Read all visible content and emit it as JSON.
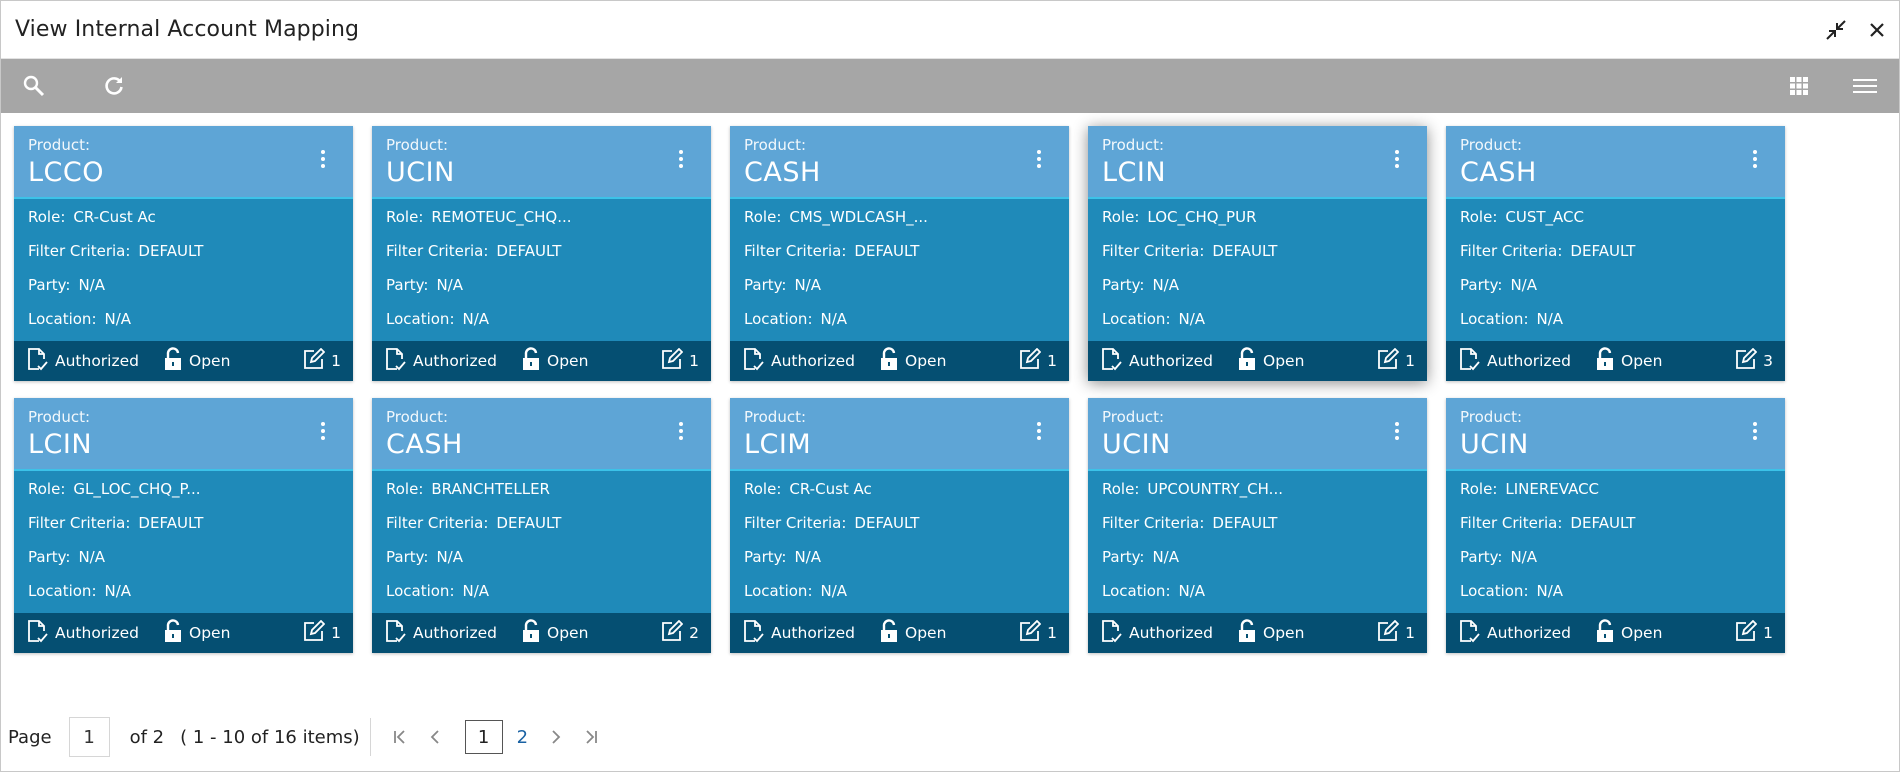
{
  "window": {
    "title": "View Internal Account Mapping"
  },
  "toolbar": {
    "search_icon": "search-icon",
    "refresh_icon": "refresh-icon",
    "grid_icon": "grid-view-icon",
    "list_icon": "list-view-icon"
  },
  "labels": {
    "product": "Product:",
    "role": "Role:",
    "filter": "Filter Criteria:",
    "party": "Party:",
    "location": "Location:"
  },
  "cards": [
    {
      "product": "LCCO",
      "role": "CR-Cust Ac",
      "filter": "DEFAULT",
      "party": "N/A",
      "location": "N/A",
      "auth": "Authorized",
      "status": "Open",
      "count": "1"
    },
    {
      "product": "UCIN",
      "role": "REMOTEUC_CHQ...",
      "filter": "DEFAULT",
      "party": "N/A",
      "location": "N/A",
      "auth": "Authorized",
      "status": "Open",
      "count": "1"
    },
    {
      "product": "CASH",
      "role": "CMS_WDLCASH_...",
      "filter": "DEFAULT",
      "party": "N/A",
      "location": "N/A",
      "auth": "Authorized",
      "status": "Open",
      "count": "1"
    },
    {
      "product": "LCIN",
      "role": "LOC_CHQ_PUR",
      "filter": "DEFAULT",
      "party": "N/A",
      "location": "N/A",
      "auth": "Authorized",
      "status": "Open",
      "count": "1"
    },
    {
      "product": "CASH",
      "role": "CUST_ACC",
      "filter": "DEFAULT",
      "party": "N/A",
      "location": "N/A",
      "auth": "Authorized",
      "status": "Open",
      "count": "3"
    },
    {
      "product": "LCIN",
      "role": "GL_LOC_CHQ_P...",
      "filter": "DEFAULT",
      "party": "N/A",
      "location": "N/A",
      "auth": "Authorized",
      "status": "Open",
      "count": "1"
    },
    {
      "product": "CASH",
      "role": "BRANCHTELLER",
      "filter": "DEFAULT",
      "party": "N/A",
      "location": "N/A",
      "auth": "Authorized",
      "status": "Open",
      "count": "2"
    },
    {
      "product": "LCIM",
      "role": "CR-Cust Ac",
      "filter": "DEFAULT",
      "party": "N/A",
      "location": "N/A",
      "auth": "Authorized",
      "status": "Open",
      "count": "1"
    },
    {
      "product": "UCIN",
      "role": "UPCOUNTRY_CH...",
      "filter": "DEFAULT",
      "party": "N/A",
      "location": "N/A",
      "auth": "Authorized",
      "status": "Open",
      "count": "1"
    },
    {
      "product": "UCIN",
      "role": "LINEREVACC",
      "filter": "DEFAULT",
      "party": "N/A",
      "location": "N/A",
      "auth": "Authorized",
      "status": "Open",
      "count": "1"
    }
  ],
  "pagination": {
    "page_label": "Page",
    "page_input": "1",
    "of_text": "of 2",
    "items_text": "( 1 - 10 of 16 items)",
    "current": "1",
    "next_page": "2"
  }
}
